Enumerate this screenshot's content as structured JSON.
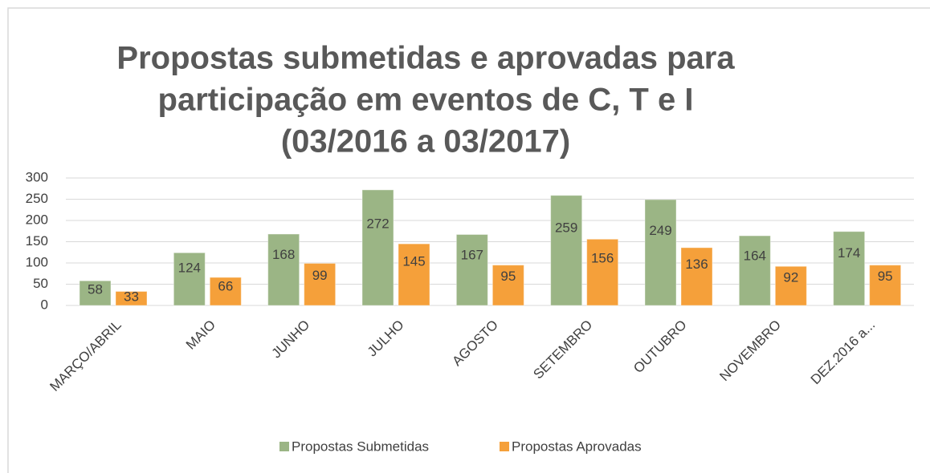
{
  "chart_data": {
    "type": "bar",
    "title": [
      "Propostas submetidas e aprovadas para",
      "participação em eventos de C, T e I",
      "(03/2016 a 03/2017)"
    ],
    "categories": [
      "MARÇO/ABRIL",
      "MAIO",
      "JUNHO",
      "JULHO",
      "AGOSTO",
      "SETEMBRO",
      "OUTUBRO",
      "NOVEMBRO",
      "DEZ.2016 a..."
    ],
    "series": [
      {
        "name": "Propostas Submetidas",
        "color": "#9bb585",
        "values": [
          58,
          124,
          168,
          272,
          167,
          259,
          249,
          164,
          174
        ]
      },
      {
        "name": "Propostas Aprovadas",
        "color": "#f5a03a",
        "values": [
          33,
          66,
          99,
          145,
          95,
          156,
          136,
          92,
          95
        ]
      }
    ],
    "ylim": [
      0,
      300
    ],
    "yticks": [
      0,
      50,
      100,
      150,
      200,
      250,
      300
    ],
    "grid": true,
    "legend": "bottom"
  }
}
